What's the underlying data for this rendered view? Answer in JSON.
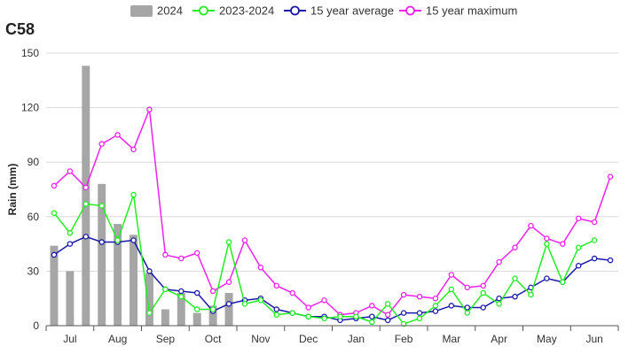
{
  "chart_data": {
    "type": "bar+line",
    "title": "C58",
    "ylabel": "Rain (mm)",
    "xlabel": "",
    "ylim": [
      0,
      150
    ],
    "yticks": [
      0,
      30,
      60,
      90,
      120,
      150
    ],
    "grid": "horizontal",
    "legend_position": "top-center",
    "month_labels": [
      "Jul",
      "Aug",
      "Sep",
      "Oct",
      "Nov",
      "Dec",
      "Jan",
      "Feb",
      "Mar",
      "Apr",
      "May",
      "Jun"
    ],
    "periods_per_month": 3,
    "bar_series": {
      "name": "2024",
      "color": "#a6a6a6",
      "values": [
        44,
        30,
        143,
        78,
        56,
        50,
        29,
        9,
        18,
        7,
        11,
        18
      ]
    },
    "line_series": [
      {
        "name": "2023-2024",
        "color": "#22ee22",
        "values": [
          62,
          51,
          67,
          66,
          47,
          72,
          7,
          20,
          16,
          9,
          9,
          46,
          12,
          14,
          6,
          7,
          5,
          4,
          5,
          5,
          2,
          12,
          1,
          4,
          11,
          20,
          7,
          18,
          12,
          26,
          17,
          45,
          24,
          43,
          47
        ]
      },
      {
        "name": "15 year average",
        "color": "#1a1aaa",
        "values": [
          39,
          45,
          49,
          46,
          46,
          47,
          30,
          20,
          19,
          18,
          8,
          12,
          14,
          15,
          9,
          7,
          5,
          5,
          3,
          4,
          5,
          3,
          7,
          7,
          8,
          11,
          10,
          10,
          15,
          16,
          21,
          26,
          24,
          33,
          37,
          36
        ]
      },
      {
        "name": "15 year maximum",
        "color": "#ee22ee",
        "values": [
          77,
          85,
          76,
          100,
          105,
          97,
          119,
          39,
          37,
          40,
          19,
          24,
          47,
          32,
          22,
          18,
          10,
          14,
          6,
          7,
          11,
          6,
          17,
          16,
          15,
          28,
          21,
          22,
          35,
          43,
          55,
          48,
          45,
          59,
          57,
          82
        ]
      }
    ]
  }
}
